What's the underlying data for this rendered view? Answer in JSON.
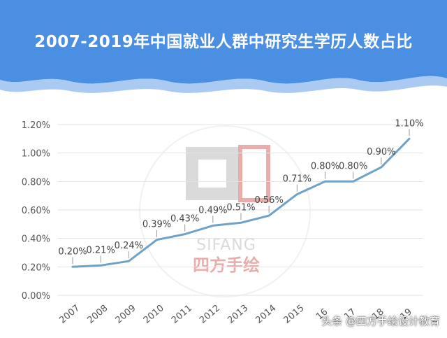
{
  "header": {
    "title": "2007-2019年中国就业人群中研究生学历人数占比"
  },
  "watermark": {
    "brand_latin": "SIFANG",
    "brand_cn": "四方手绘",
    "credit": "头条 @四方手绘设计教育"
  },
  "colors": {
    "header_bg": "#4a8fe2",
    "line": "#6fa2c6",
    "grid": "#e3e3e3",
    "tick_text": "#555555",
    "watermark_red": "#d66b66"
  },
  "chart_data": {
    "type": "line",
    "title": "",
    "xlabel": "",
    "ylabel": "",
    "categories": [
      "2007",
      "2008",
      "2009",
      "2010",
      "2011",
      "2012",
      "2013",
      "2014",
      "2015",
      "2016",
      "2017",
      "2018",
      "2019"
    ],
    "x_tick_labels": [
      "2007",
      "2008",
      "2009",
      "2010",
      "2011",
      "2012",
      "2013",
      "2014",
      "2015",
      "16",
      "17",
      "18",
      "19"
    ],
    "series": [
      {
        "values": [
          0.2,
          0.21,
          0.24,
          0.39,
          0.43,
          0.49,
          0.51,
          0.56,
          0.71,
          0.8,
          0.8,
          0.9,
          1.1
        ]
      }
    ],
    "data_labels": [
      "0.20%",
      "0.21%",
      "0.24%",
      "0.39%",
      "0.43%",
      "0.49%",
      "0.51%",
      "0.56%",
      "0.71%",
      "0.80%",
      "0.80%",
      "0.90%",
      "1.10%"
    ],
    "y_tick_labels": [
      "0.00%",
      "0.20%",
      "0.40%",
      "0.60%",
      "0.80%",
      "1.00%",
      "1.20%"
    ],
    "ylim": [
      0,
      1.2
    ],
    "y_step": 0.2,
    "grid": true,
    "legend": "none"
  }
}
